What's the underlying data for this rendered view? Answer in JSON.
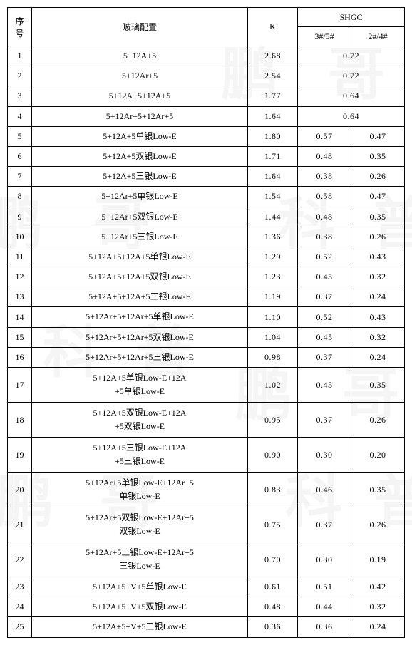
{
  "header": {
    "seq": "序号",
    "config": "玻璃配置",
    "k": "K",
    "shgc": "SHGC",
    "shgc_a": "3#/5#",
    "shgc_b": "2#/4#"
  },
  "rows": [
    {
      "seq": "1",
      "config": "5+12A+5",
      "k": "2.68",
      "shgc_merged": "0.72"
    },
    {
      "seq": "2",
      "config": "5+12Ar+5",
      "k": "2.54",
      "shgc_merged": "0.72"
    },
    {
      "seq": "3",
      "config": "5+12A+5+12A+5",
      "k": "1.77",
      "shgc_merged": "0.64"
    },
    {
      "seq": "4",
      "config": "5+12Ar+5+12Ar+5",
      "k": "1.64",
      "shgc_merged": "0.64"
    },
    {
      "seq": "5",
      "config": "5+12A+5单银Low-E",
      "k": "1.80",
      "a": "0.57",
      "b": "0.47"
    },
    {
      "seq": "6",
      "config": "5+12A+5双银Low-E",
      "k": "1.71",
      "a": "0.48",
      "b": "0.35"
    },
    {
      "seq": "7",
      "config": "5+12A+5三银Low-E",
      "k": "1.64",
      "a": "0.38",
      "b": "0.26"
    },
    {
      "seq": "8",
      "config": "5+12Ar+5单银Low-E",
      "k": "1.54",
      "a": "0.58",
      "b": "0.47"
    },
    {
      "seq": "9",
      "config": "5+12Ar+5双银Low-E",
      "k": "1.44",
      "a": "0.48",
      "b": "0.35"
    },
    {
      "seq": "10",
      "config": "5+12Ar+5三银Low-E",
      "k": "1.36",
      "a": "0.38",
      "b": "0.26"
    },
    {
      "seq": "11",
      "config": "5+12A+5+12A+5单银Low-E",
      "k": "1.29",
      "a": "0.52",
      "b": "0.43"
    },
    {
      "seq": "12",
      "config": "5+12A+5+12A+5双银Low-E",
      "k": "1.23",
      "a": "0.45",
      "b": "0.32"
    },
    {
      "seq": "13",
      "config": "5+12A+5+12A+5三银Low-E",
      "k": "1.19",
      "a": "0.37",
      "b": "0.24"
    },
    {
      "seq": "14",
      "config": "5+12Ar+5+12Ar+5单银Low-E",
      "k": "1.10",
      "a": "0.52",
      "b": "0.43"
    },
    {
      "seq": "15",
      "config": "5+12Ar+5+12Ar+5双银Low-E",
      "k": "1.04",
      "a": "0.45",
      "b": "0.32"
    },
    {
      "seq": "16",
      "config": "5+12Ar+5+12Ar+5三银Low-E",
      "k": "0.98",
      "a": "0.37",
      "b": "0.24"
    },
    {
      "seq": "17",
      "config": "5+12A+5单银Low-E+12A<br>+5单银Low-E",
      "k": "1.02",
      "a": "0.45",
      "b": "0.35",
      "tall": true
    },
    {
      "seq": "18",
      "config": "5+12A+5双银Low-E+12A<br>+5双银Low-E",
      "k": "0.95",
      "a": "0.37",
      "b": "0.26",
      "tall": true
    },
    {
      "seq": "19",
      "config": "5+12A+5三银Low-E+12A<br>+5三银Low-E",
      "k": "0.90",
      "a": "0.30",
      "b": "0.20",
      "tall": true
    },
    {
      "seq": "20",
      "config": "5+12Ar+5单银Low-E+12Ar+5<br>单银Low-E",
      "k": "0.83",
      "a": "0.46",
      "b": "0.35",
      "tall": true
    },
    {
      "seq": "21",
      "config": "5+12Ar+5双银Low-E+12Ar+5<br>双银Low-E",
      "k": "0.75",
      "a": "0.37",
      "b": "0.26",
      "tall": true
    },
    {
      "seq": "22",
      "config": "5+12Ar+5三银Low-E+12Ar+5<br>三银Low-E",
      "k": "0.70",
      "a": "0.30",
      "b": "0.19",
      "tall": true
    },
    {
      "seq": "23",
      "config": "5+12A+5+V+5单银Low-E",
      "k": "0.61",
      "a": "0.51",
      "b": "0.42"
    },
    {
      "seq": "24",
      "config": "5+12A+5+V+5双银Low-E",
      "k": "0.48",
      "a": "0.44",
      "b": "0.32"
    },
    {
      "seq": "25",
      "config": "5+12A+5+V+5三银Low-E",
      "k": "0.36",
      "a": "0.36",
      "b": "0.24"
    }
  ]
}
